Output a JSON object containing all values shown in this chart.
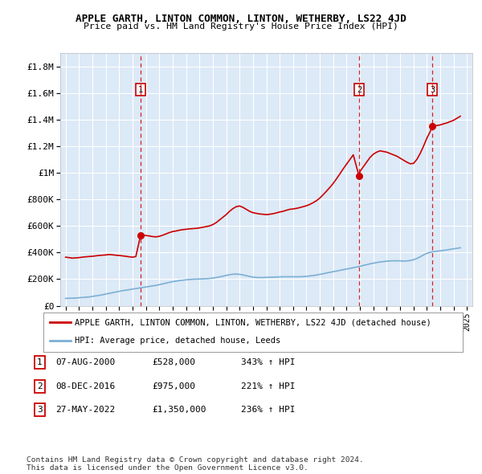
{
  "title": "APPLE GARTH, LINTON COMMON, LINTON, WETHERBY, LS22 4JD",
  "subtitle": "Price paid vs. HM Land Registry's House Price Index (HPI)",
  "bg_color": "#dce9f7",
  "red_line_color": "#cc0000",
  "blue_line_color": "#7bafd4",
  "grid_color": "#ffffff",
  "ylim": [
    0,
    1900000
  ],
  "yticks": [
    0,
    200000,
    400000,
    600000,
    800000,
    1000000,
    1200000,
    1400000,
    1600000,
    1800000
  ],
  "ytick_labels": [
    "£0",
    "£200K",
    "£400K",
    "£600K",
    "£800K",
    "£1M",
    "£1.2M",
    "£1.4M",
    "£1.6M",
    "£1.8M"
  ],
  "xlim_start": 1994.6,
  "xlim_end": 2025.4,
  "xtick_years": [
    1995,
    1996,
    1997,
    1998,
    1999,
    2000,
    2001,
    2002,
    2003,
    2004,
    2005,
    2006,
    2007,
    2008,
    2009,
    2010,
    2011,
    2012,
    2013,
    2014,
    2015,
    2016,
    2017,
    2018,
    2019,
    2020,
    2021,
    2022,
    2023,
    2024,
    2025
  ],
  "sale_markers": [
    {
      "year": 2000.6,
      "price": 528000,
      "label": "1",
      "x_dashed": 2000.6
    },
    {
      "year": 2016.93,
      "price": 975000,
      "label": "2",
      "x_dashed": 2016.93
    },
    {
      "year": 2022.4,
      "price": 1350000,
      "label": "3",
      "x_dashed": 2022.4
    }
  ],
  "table_rows": [
    [
      "1",
      "07-AUG-2000",
      "£528,000",
      "343% ↑ HPI"
    ],
    [
      "2",
      "08-DEC-2016",
      "£975,000",
      "221% ↑ HPI"
    ],
    [
      "3",
      "27-MAY-2022",
      "£1,350,000",
      "236% ↑ HPI"
    ]
  ],
  "legend_entries": [
    "APPLE GARTH, LINTON COMMON, LINTON, WETHERBY, LS22 4JD (detached house)",
    "HPI: Average price, detached house, Leeds"
  ],
  "footer_text": "Contains HM Land Registry data © Crown copyright and database right 2024.\nThis data is licensed under the Open Government Licence v3.0.",
  "red_line_data_x": [
    1995.0,
    1995.25,
    1995.5,
    1995.75,
    1996.0,
    1996.25,
    1996.5,
    1996.75,
    1997.0,
    1997.25,
    1997.5,
    1997.75,
    1998.0,
    1998.25,
    1998.5,
    1998.75,
    1999.0,
    1999.25,
    1999.5,
    1999.75,
    2000.0,
    2000.25,
    2000.6,
    2000.75,
    2001.0,
    2001.25,
    2001.5,
    2001.75,
    2002.0,
    2002.25,
    2002.5,
    2002.75,
    2003.0,
    2003.25,
    2003.5,
    2003.75,
    2004.0,
    2004.25,
    2004.5,
    2004.75,
    2005.0,
    2005.25,
    2005.5,
    2005.75,
    2006.0,
    2006.25,
    2006.5,
    2006.75,
    2007.0,
    2007.25,
    2007.5,
    2007.75,
    2008.0,
    2008.25,
    2008.5,
    2008.75,
    2009.0,
    2009.25,
    2009.5,
    2009.75,
    2010.0,
    2010.25,
    2010.5,
    2010.75,
    2011.0,
    2011.25,
    2011.5,
    2011.75,
    2012.0,
    2012.25,
    2012.5,
    2012.75,
    2013.0,
    2013.25,
    2013.5,
    2013.75,
    2014.0,
    2014.25,
    2014.5,
    2014.75,
    2015.0,
    2015.25,
    2015.5,
    2015.75,
    2016.0,
    2016.25,
    2016.5,
    2016.93,
    2017.0,
    2017.25,
    2017.5,
    2017.75,
    2018.0,
    2018.25,
    2018.5,
    2018.75,
    2019.0,
    2019.25,
    2019.5,
    2019.75,
    2020.0,
    2020.25,
    2020.5,
    2020.75,
    2021.0,
    2021.25,
    2021.5,
    2021.75,
    2022.0,
    2022.25,
    2022.4,
    2022.75,
    2023.0,
    2023.25,
    2023.5,
    2023.75,
    2024.0,
    2024.25,
    2024.5
  ],
  "red_line_data_y": [
    365000,
    362000,
    358000,
    360000,
    362000,
    365000,
    368000,
    370000,
    372000,
    375000,
    378000,
    380000,
    382000,
    385000,
    383000,
    380000,
    378000,
    375000,
    372000,
    368000,
    365000,
    370000,
    528000,
    532000,
    528000,
    525000,
    520000,
    518000,
    522000,
    530000,
    540000,
    550000,
    558000,
    562000,
    568000,
    572000,
    575000,
    578000,
    580000,
    582000,
    585000,
    590000,
    595000,
    600000,
    610000,
    625000,
    645000,
    665000,
    685000,
    710000,
    730000,
    745000,
    750000,
    740000,
    725000,
    710000,
    700000,
    695000,
    690000,
    688000,
    685000,
    688000,
    692000,
    698000,
    705000,
    710000,
    718000,
    725000,
    728000,
    732000,
    738000,
    745000,
    752000,
    762000,
    775000,
    790000,
    810000,
    835000,
    862000,
    890000,
    920000,
    955000,
    992000,
    1030000,
    1065000,
    1100000,
    1135000,
    975000,
    1010000,
    1045000,
    1080000,
    1115000,
    1140000,
    1155000,
    1165000,
    1160000,
    1155000,
    1145000,
    1135000,
    1125000,
    1110000,
    1095000,
    1080000,
    1068000,
    1070000,
    1100000,
    1145000,
    1200000,
    1260000,
    1310000,
    1350000,
    1355000,
    1360000,
    1368000,
    1375000,
    1385000,
    1395000,
    1410000,
    1425000
  ],
  "blue_line_data_x": [
    1995.0,
    1995.25,
    1995.5,
    1995.75,
    1996.0,
    1996.25,
    1996.5,
    1996.75,
    1997.0,
    1997.25,
    1997.5,
    1997.75,
    1998.0,
    1998.25,
    1998.5,
    1998.75,
    1999.0,
    1999.25,
    1999.5,
    1999.75,
    2000.0,
    2000.25,
    2000.5,
    2000.75,
    2001.0,
    2001.25,
    2001.5,
    2001.75,
    2002.0,
    2002.25,
    2002.5,
    2002.75,
    2003.0,
    2003.25,
    2003.5,
    2003.75,
    2004.0,
    2004.25,
    2004.5,
    2004.75,
    2005.0,
    2005.25,
    2005.5,
    2005.75,
    2006.0,
    2006.25,
    2006.5,
    2006.75,
    2007.0,
    2007.25,
    2007.5,
    2007.75,
    2008.0,
    2008.25,
    2008.5,
    2008.75,
    2009.0,
    2009.25,
    2009.5,
    2009.75,
    2010.0,
    2010.25,
    2010.5,
    2010.75,
    2011.0,
    2011.25,
    2011.5,
    2011.75,
    2012.0,
    2012.25,
    2012.5,
    2012.75,
    2013.0,
    2013.25,
    2013.5,
    2013.75,
    2014.0,
    2014.25,
    2014.5,
    2014.75,
    2015.0,
    2015.25,
    2015.5,
    2015.75,
    2016.0,
    2016.25,
    2016.5,
    2016.75,
    2017.0,
    2017.25,
    2017.5,
    2017.75,
    2018.0,
    2018.25,
    2018.5,
    2018.75,
    2019.0,
    2019.25,
    2019.5,
    2019.75,
    2020.0,
    2020.25,
    2020.5,
    2020.75,
    2021.0,
    2021.25,
    2021.5,
    2021.75,
    2022.0,
    2022.25,
    2022.5,
    2022.75,
    2023.0,
    2023.25,
    2023.5,
    2023.75,
    2024.0,
    2024.25,
    2024.5
  ],
  "blue_line_data_y": [
    55000,
    56000,
    57000,
    58000,
    60000,
    62000,
    64000,
    66000,
    70000,
    74000,
    78000,
    82000,
    88000,
    93000,
    98000,
    103000,
    108000,
    113000,
    117000,
    121000,
    125000,
    129000,
    133000,
    137000,
    141000,
    145000,
    149000,
    153000,
    158000,
    164000,
    170000,
    176000,
    181000,
    185000,
    189000,
    192000,
    195000,
    197000,
    199000,
    200000,
    201000,
    202000,
    203000,
    205000,
    208000,
    212000,
    217000,
    222000,
    228000,
    233000,
    237000,
    238000,
    236000,
    232000,
    226000,
    220000,
    215000,
    213000,
    212000,
    212000,
    213000,
    214000,
    215000,
    216000,
    217000,
    218000,
    218000,
    218000,
    218000,
    218000,
    218000,
    219000,
    221000,
    224000,
    227000,
    231000,
    236000,
    241000,
    246000,
    251000,
    256000,
    261000,
    266000,
    271000,
    276000,
    281000,
    286000,
    291000,
    297000,
    303000,
    309000,
    315000,
    320000,
    325000,
    329000,
    332000,
    335000,
    337000,
    338000,
    338000,
    337000,
    336000,
    337000,
    340000,
    346000,
    355000,
    368000,
    382000,
    394000,
    402000,
    407000,
    410000,
    413000,
    416000,
    420000,
    424000,
    428000,
    432000,
    436000
  ]
}
